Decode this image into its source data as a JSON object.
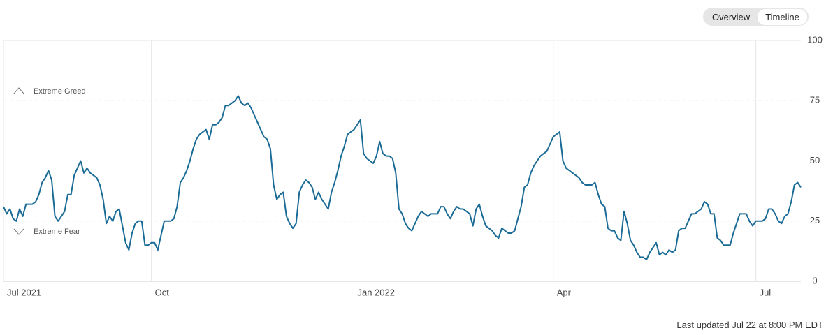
{
  "toggle": {
    "options": [
      "Overview",
      "Timeline"
    ]
  },
  "chart_data": {
    "type": "line",
    "color": "#1a6b96",
    "grid": true,
    "annotations": [
      "Extreme Greed",
      "Extreme Fear"
    ],
    "xlim": [
      0,
      248
    ],
    "xticks": [
      {
        "value": 0,
        "label": "Jul 2021"
      },
      {
        "value": 46,
        "label": "Oct"
      },
      {
        "value": 109,
        "label": "Jan 2022"
      },
      {
        "value": 171,
        "label": "Apr"
      },
      {
        "value": 234,
        "label": "Jul"
      }
    ],
    "ylim": [
      0,
      100
    ],
    "yticks": [
      0,
      25,
      50,
      75,
      100
    ],
    "values": [
      31,
      28,
      30,
      26,
      25,
      30,
      27,
      32,
      32,
      32,
      33,
      36,
      41,
      43,
      46,
      42,
      27,
      25,
      27,
      29,
      36,
      36,
      44,
      47,
      50,
      45,
      47,
      45,
      44,
      43,
      40,
      34,
      24,
      27,
      25,
      29,
      30,
      23,
      16,
      13,
      20,
      24,
      25,
      25,
      15,
      15,
      16,
      16,
      13,
      19,
      25,
      25,
      25,
      26,
      31,
      41,
      43,
      46,
      50,
      55,
      59,
      61,
      62,
      63,
      59,
      65,
      65,
      66,
      68,
      73,
      73,
      74,
      75,
      77,
      74,
      73,
      74,
      72,
      69,
      66,
      63,
      60,
      59,
      55,
      40,
      34,
      36,
      37,
      27,
      24,
      22,
      24,
      37,
      40,
      42,
      41,
      39,
      34,
      37,
      34,
      32,
      30,
      37,
      41,
      46,
      52,
      56,
      61,
      62,
      63,
      65,
      67,
      53,
      51,
      50,
      49,
      52,
      58,
      53,
      52,
      52,
      51,
      45,
      30,
      28,
      24,
      22,
      21,
      24,
      27,
      29,
      28,
      27,
      28,
      28,
      28,
      31,
      31,
      28,
      26,
      29,
      31,
      30,
      30,
      29,
      28,
      23,
      30,
      32,
      27,
      23,
      22,
      21,
      19,
      18,
      22,
      21,
      20,
      20,
      21,
      26,
      31,
      39,
      40,
      45,
      48,
      50,
      52,
      53,
      54,
      57,
      60,
      61,
      62,
      50,
      47,
      46,
      45,
      44,
      43,
      41,
      40,
      40,
      40,
      41,
      36,
      32,
      31,
      22,
      21,
      21,
      18,
      17,
      29,
      24,
      17,
      15,
      12,
      10,
      10,
      9,
      12,
      14,
      16,
      11,
      12,
      11,
      13,
      12,
      13,
      21,
      22,
      22,
      25,
      28,
      28,
      29,
      30,
      33,
      32,
      28,
      28,
      18,
      17,
      15,
      15,
      15,
      20,
      24,
      28,
      28,
      28,
      25,
      23,
      25,
      25,
      25,
      26,
      30,
      30,
      28,
      25,
      24,
      27,
      28,
      33,
      40,
      41,
      39
    ]
  },
  "footer": "Last updated Jul 22 at 8:00 PM EDT"
}
